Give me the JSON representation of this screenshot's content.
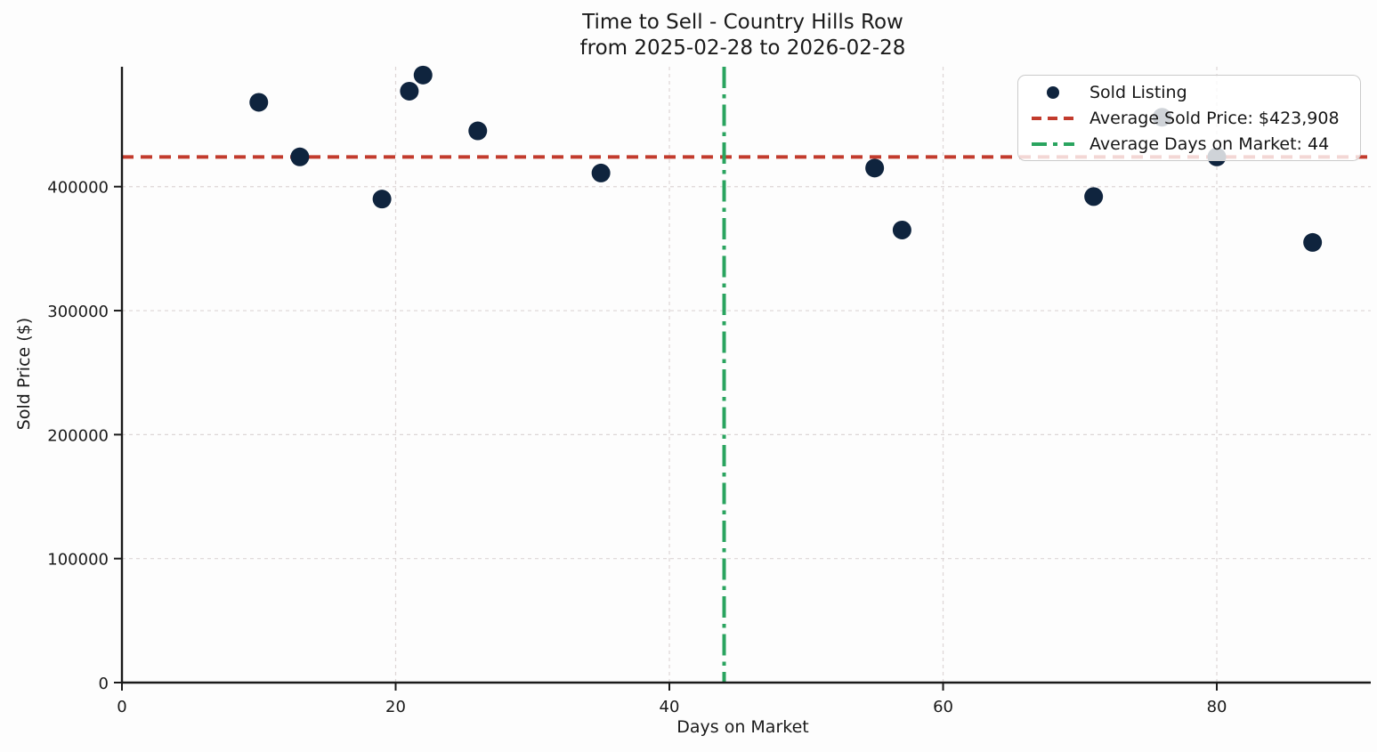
{
  "chart_data": {
    "type": "scatter",
    "title_lines": [
      "Time to Sell - Country Hills Row",
      "from 2025-02-28 to 2026-02-28"
    ],
    "xlabel": "Days on Market",
    "ylabel": "Sold Price ($)",
    "xlim": [
      0,
      90.73
    ],
    "ylim": [
      0,
      496700
    ],
    "x_ticks": [
      0,
      20,
      40,
      60,
      80
    ],
    "y_ticks": [
      0,
      100000,
      200000,
      300000,
      400000
    ],
    "grid": true,
    "legend_position": "upper right",
    "series": [
      {
        "name": "Sold Listing",
        "type": "scatter",
        "color": "#0f243e",
        "points": [
          [
            10,
            468000
          ],
          [
            13,
            424000
          ],
          [
            19,
            390000
          ],
          [
            21,
            477000
          ],
          [
            22,
            490000
          ],
          [
            26,
            445000
          ],
          [
            35,
            411000
          ],
          [
            55,
            415000
          ],
          [
            57,
            365000
          ],
          [
            71,
            392000
          ],
          [
            76,
            456000
          ],
          [
            80,
            424000
          ],
          [
            87,
            355000
          ]
        ]
      }
    ],
    "avg_price_line": {
      "value": 423908,
      "label": "Average Sold Price: $423,908",
      "color": "#c23b2d",
      "style": "dashed"
    },
    "avg_days_line": {
      "value": 44,
      "label": "Average Days on Market: 44",
      "color": "#2aa45f",
      "style": "dashdot"
    },
    "colors": {
      "marker": "#0f243e",
      "avg_price": "#c23b2d",
      "avg_days": "#2aa45f",
      "grid": "#ddd6d6",
      "spine": "#1a1a1a"
    }
  }
}
